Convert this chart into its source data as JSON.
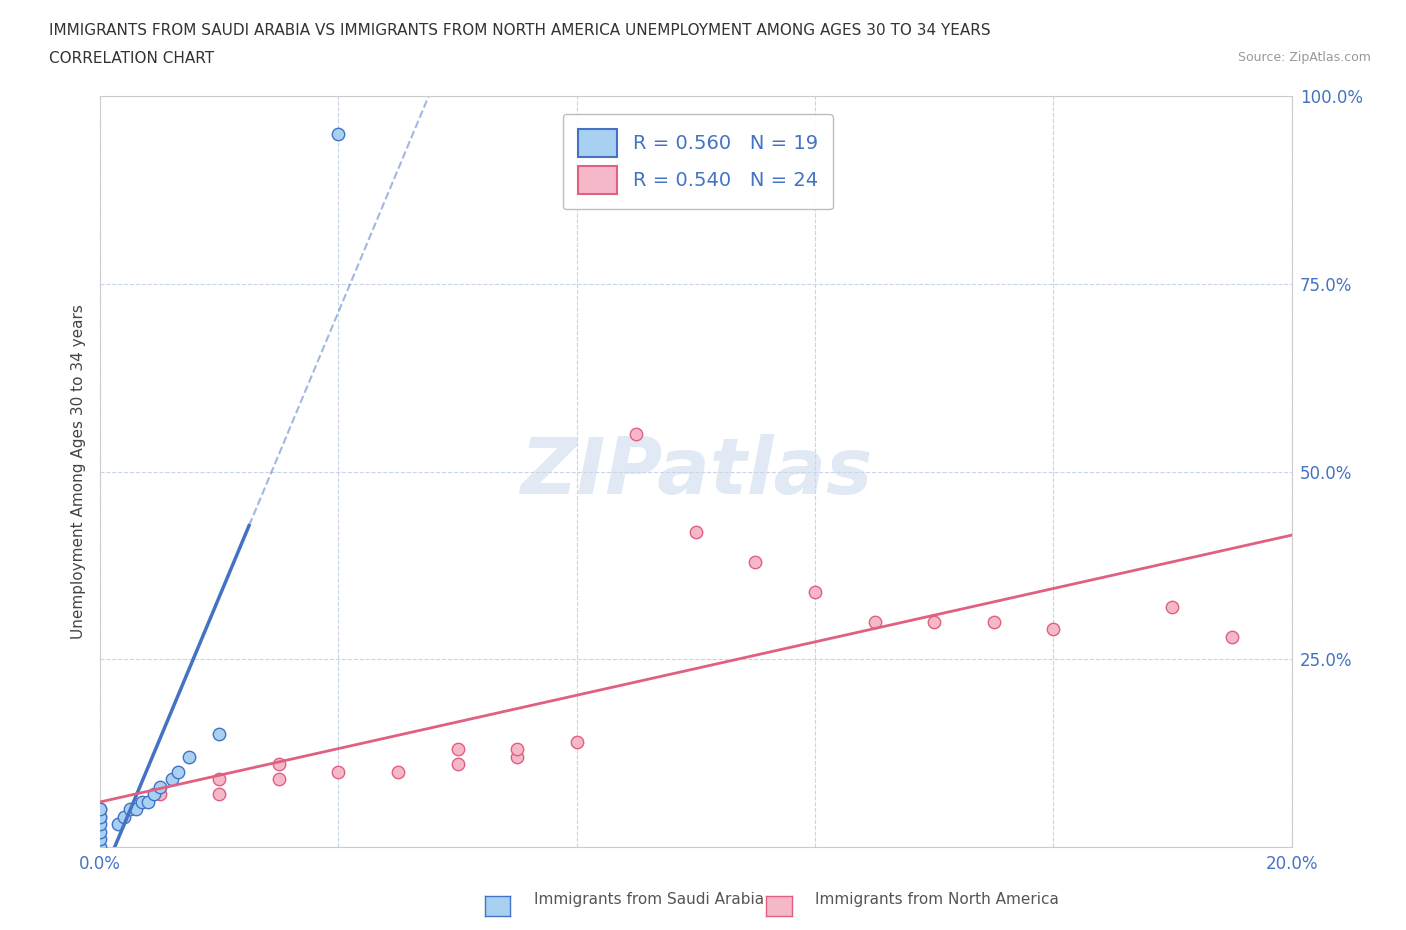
{
  "title_line1": "IMMIGRANTS FROM SAUDI ARABIA VS IMMIGRANTS FROM NORTH AMERICA UNEMPLOYMENT AMONG AGES 30 TO 34 YEARS",
  "title_line2": "CORRELATION CHART",
  "source": "Source: ZipAtlas.com",
  "ylabel": "Unemployment Among Ages 30 to 34 years",
  "xlim": [
    0.0,
    0.2
  ],
  "ylim": [
    0.0,
    1.0
  ],
  "xticks": [
    0.0,
    0.04,
    0.08,
    0.12,
    0.16,
    0.2
  ],
  "yticks": [
    0.0,
    0.25,
    0.5,
    0.75,
    1.0
  ],
  "saudi_color": "#a8d0f0",
  "saudi_edge_color": "#4472c4",
  "north_america_color": "#f4b8c8",
  "north_america_edge_color": "#e06080",
  "saudi_R": 0.56,
  "saudi_N": 19,
  "north_america_R": 0.54,
  "north_america_N": 24,
  "saudi_scatter_x": [
    0.0,
    0.0,
    0.0,
    0.0,
    0.0,
    0.0,
    0.003,
    0.004,
    0.005,
    0.006,
    0.007,
    0.008,
    0.009,
    0.01,
    0.012,
    0.013,
    0.015,
    0.02,
    0.04
  ],
  "saudi_scatter_y": [
    0.0,
    0.01,
    0.02,
    0.03,
    0.04,
    0.05,
    0.03,
    0.04,
    0.05,
    0.05,
    0.06,
    0.06,
    0.07,
    0.08,
    0.09,
    0.1,
    0.12,
    0.15,
    0.95
  ],
  "north_america_scatter_x": [
    0.0,
    0.0,
    0.01,
    0.02,
    0.02,
    0.03,
    0.03,
    0.04,
    0.05,
    0.06,
    0.06,
    0.07,
    0.07,
    0.08,
    0.09,
    0.1,
    0.11,
    0.12,
    0.13,
    0.14,
    0.15,
    0.16,
    0.18,
    0.19
  ],
  "north_america_scatter_y": [
    0.04,
    0.05,
    0.07,
    0.07,
    0.09,
    0.09,
    0.11,
    0.1,
    0.1,
    0.11,
    0.13,
    0.12,
    0.13,
    0.14,
    0.55,
    0.42,
    0.38,
    0.34,
    0.3,
    0.3,
    0.3,
    0.29,
    0.32,
    0.28
  ],
  "watermark_text": "ZIPatlas",
  "background_color": "#ffffff",
  "grid_color": "#c8d4e8",
  "grid_style": "--",
  "legend_R_color": "#4472c4",
  "tick_color": "#4472c4"
}
